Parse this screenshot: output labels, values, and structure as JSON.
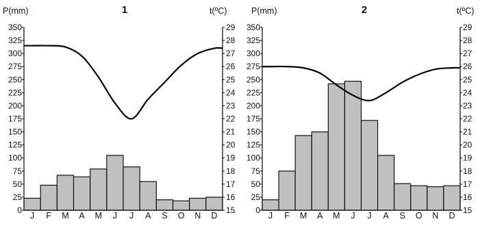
{
  "chart_data": [
    {
      "type": "bar+line",
      "title": "1",
      "left_axis_label": "P(mm)",
      "right_axis_label": "t(ºC)",
      "left_ylim": [
        0,
        350
      ],
      "left_ticks": [
        0,
        25,
        50,
        75,
        100,
        125,
        150,
        175,
        200,
        225,
        250,
        275,
        300,
        325,
        350
      ],
      "right_ylim": [
        15,
        29
      ],
      "right_ticks": [
        15,
        16,
        17,
        18,
        19,
        20,
        21,
        22,
        23,
        24,
        25,
        26,
        27,
        28,
        29
      ],
      "categories": [
        "J",
        "F",
        "M",
        "A",
        "M",
        "J",
        "J",
        "A",
        "S",
        "O",
        "N",
        "D"
      ],
      "series": [
        {
          "name": "P(mm)",
          "kind": "bar",
          "axis": "left",
          "color": "#c0c0c0",
          "values": [
            23,
            48,
            67,
            64,
            79,
            105,
            83,
            55,
            20,
            18,
            23,
            25
          ]
        },
        {
          "name": "t(ºC)",
          "kind": "line",
          "axis": "right",
          "color": "#000000",
          "values": [
            27.6,
            27.6,
            27.5,
            26.8,
            25.2,
            23.2,
            22.0,
            23.5,
            24.8,
            26.1,
            27.0,
            27.4
          ]
        }
      ]
    },
    {
      "type": "bar+line",
      "title": "2",
      "left_axis_label": "P(mm)",
      "right_axis_label": "t(ºC)",
      "left_ylim": [
        0,
        350
      ],
      "left_ticks": [
        0,
        25,
        50,
        75,
        100,
        125,
        150,
        175,
        200,
        225,
        250,
        275,
        300,
        325,
        350
      ],
      "right_ylim": [
        15,
        29
      ],
      "right_ticks": [
        15,
        16,
        17,
        18,
        19,
        20,
        21,
        22,
        23,
        24,
        25,
        26,
        27,
        28,
        29
      ],
      "categories": [
        "J",
        "F",
        "M",
        "A",
        "M",
        "J",
        "J",
        "A",
        "S",
        "O",
        "N",
        "D"
      ],
      "series": [
        {
          "name": "P(mm)",
          "kind": "bar",
          "axis": "left",
          "color": "#c0c0c0",
          "values": [
            20,
            75,
            143,
            150,
            242,
            247,
            172,
            105,
            51,
            47,
            45,
            47
          ]
        },
        {
          "name": "t(ºC)",
          "kind": "line",
          "axis": "right",
          "color": "#000000",
          "values": [
            26.0,
            26.0,
            25.9,
            25.5,
            24.6,
            23.8,
            23.4,
            24.0,
            24.8,
            25.4,
            25.8,
            25.9
          ]
        }
      ]
    }
  ]
}
